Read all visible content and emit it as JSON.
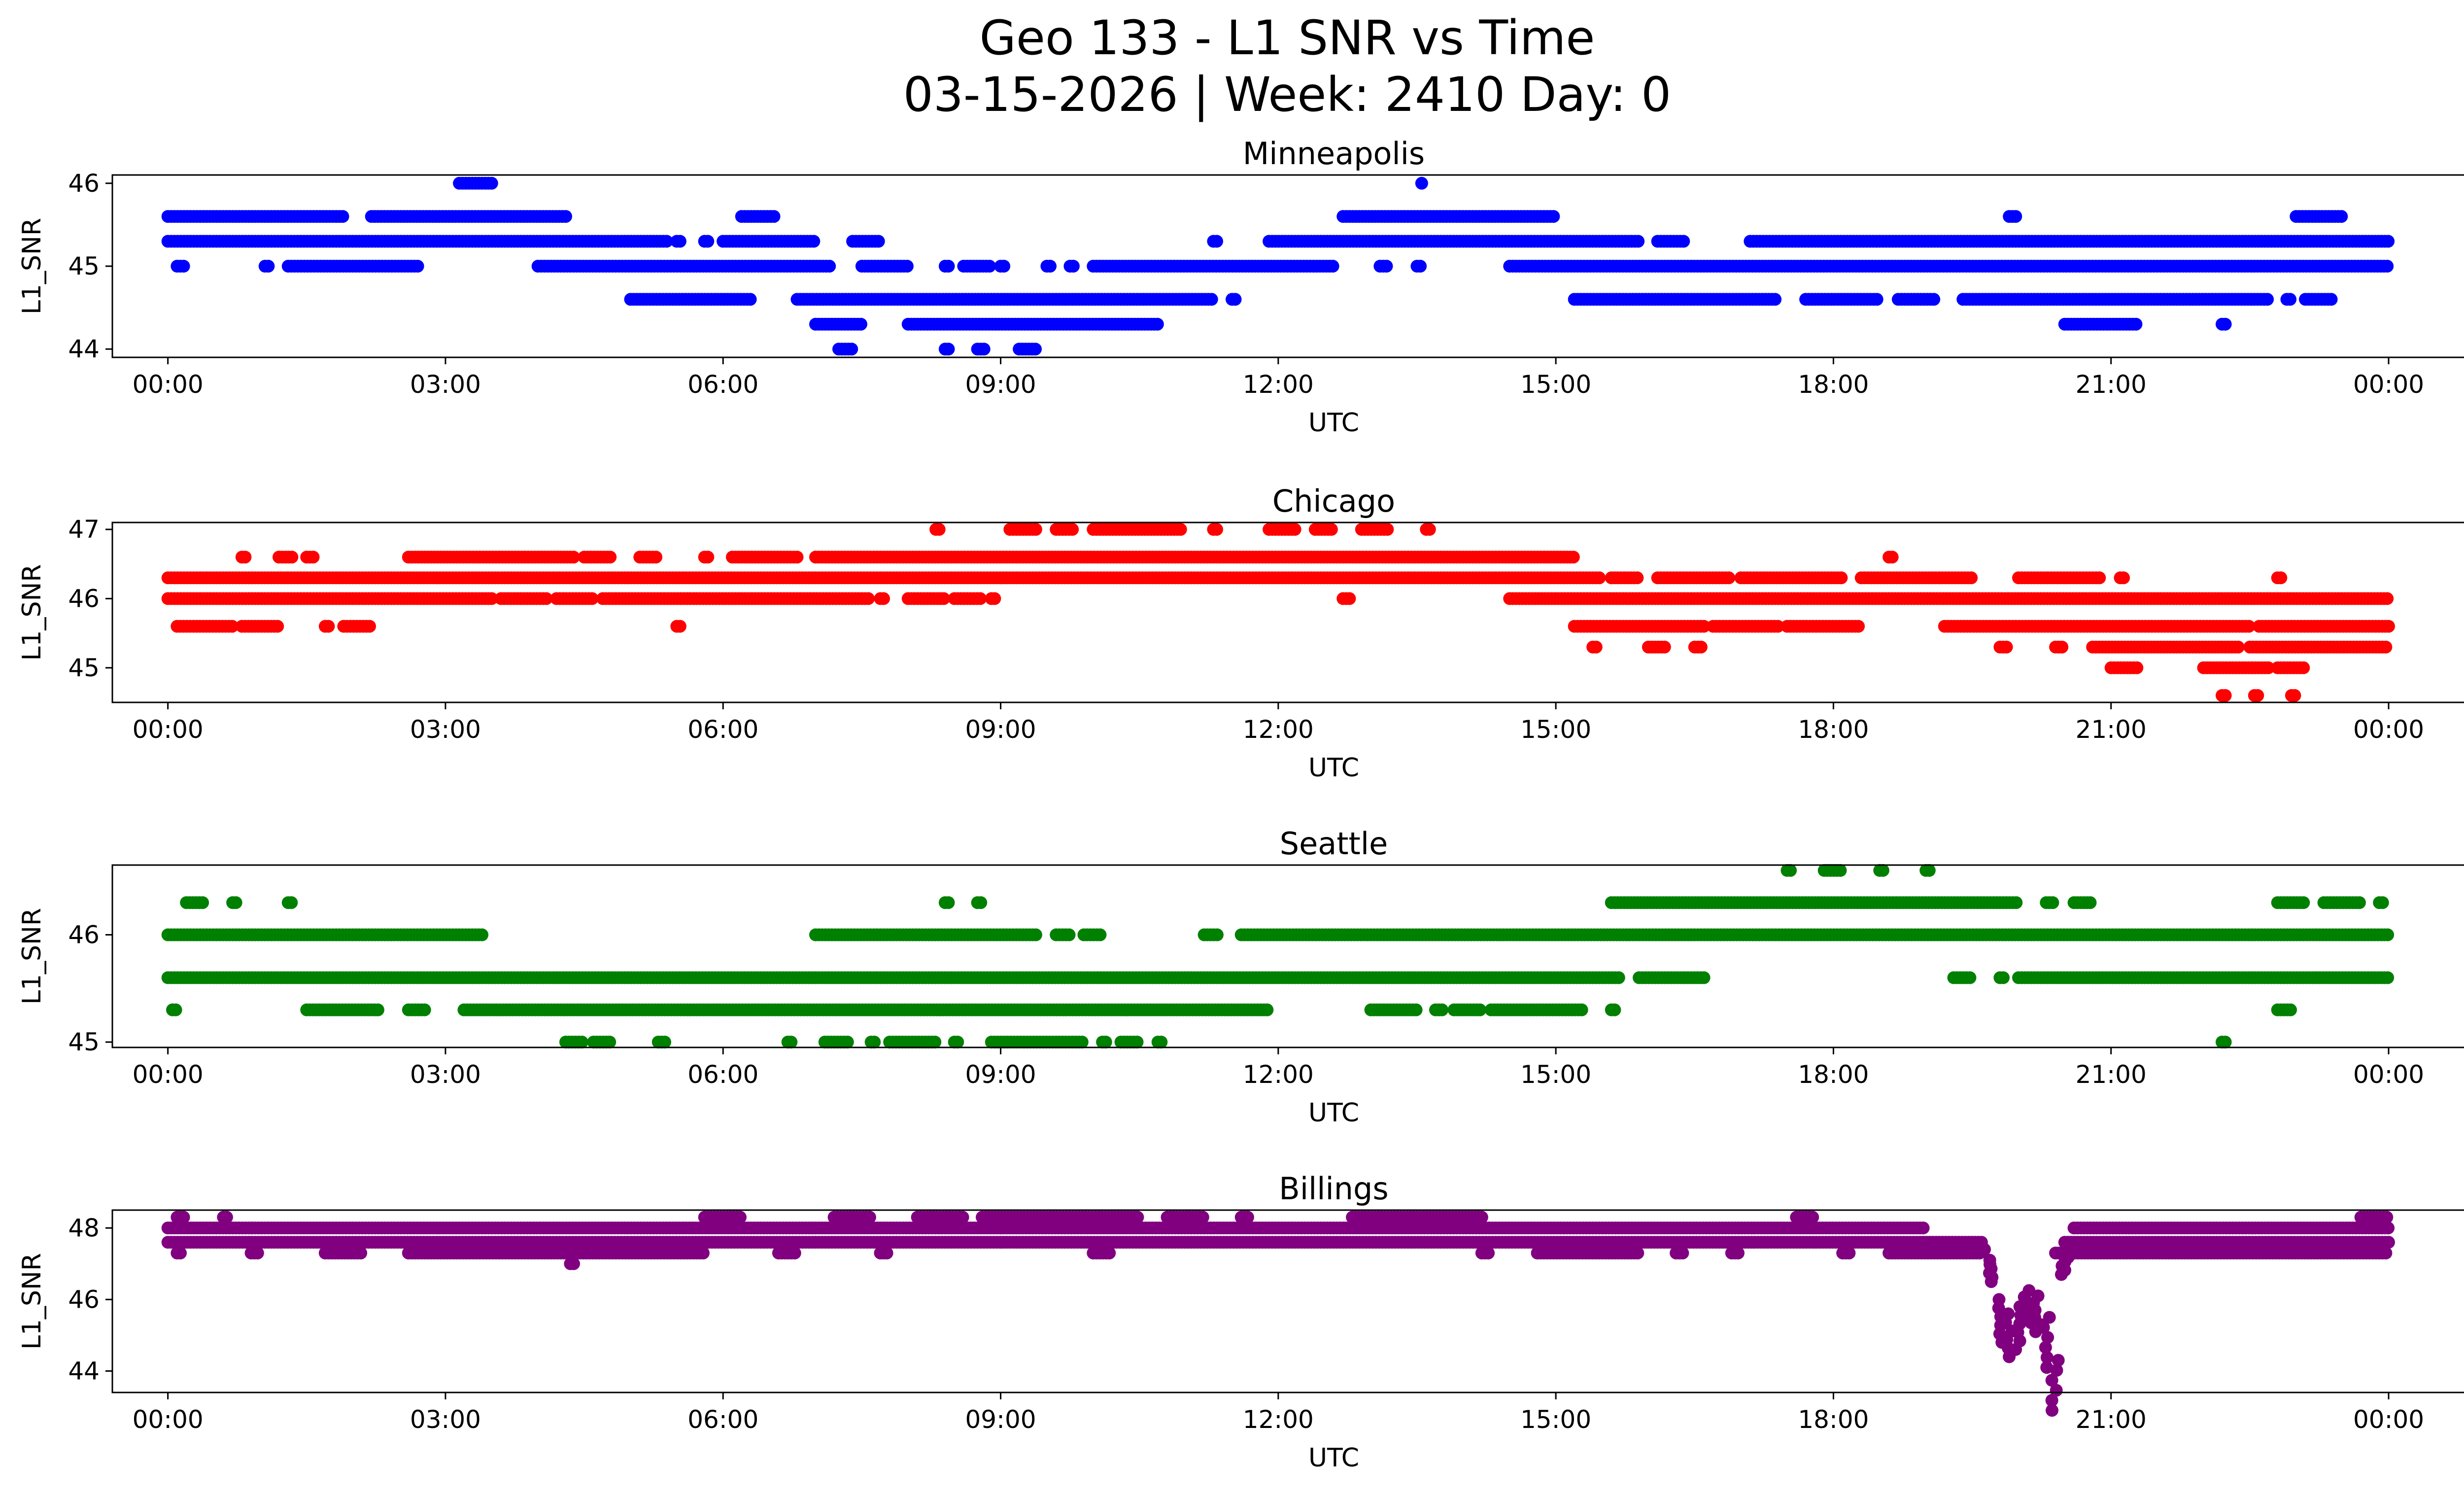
{
  "figure": {
    "title_line1": "Geo 133 - L1 SNR vs Time",
    "title_line2": "03-15-2026 | Week: 2410 Day: 0"
  },
  "chart_data": [
    {
      "type": "scatter",
      "title": "Minneapolis",
      "xlabel": "UTC",
      "ylabel": "L1_SNR",
      "color": "#0000ff",
      "xlim_hours": [
        -0.6,
        25.8
      ],
      "ylim": [
        43.9,
        46.1
      ],
      "xticks_hours": [
        0,
        3,
        6,
        9,
        12,
        15,
        18,
        21,
        24
      ],
      "xtick_labels": [
        "00:00",
        "03:00",
        "06:00",
        "09:00",
        "12:00",
        "15:00",
        "18:00",
        "21:00",
        "00:00"
      ],
      "yticks": [
        44,
        45,
        46
      ],
      "ytick_labels": [
        "44",
        "45",
        "46"
      ],
      "series": [
        {
          "level": 46.0,
          "ranges": [
            [
              3.15,
              3.5
            ],
            [
              13.55,
              13.55
            ]
          ]
        },
        {
          "level": 45.6,
          "ranges": [
            [
              0.0,
              1.9
            ],
            [
              2.2,
              4.3
            ],
            [
              6.2,
              6.55
            ],
            [
              12.7,
              15.0
            ],
            [
              19.9,
              20.0
            ],
            [
              23.0,
              23.5
            ]
          ]
        },
        {
          "level": 45.3,
          "ranges": [
            [
              0.0,
              5.4
            ],
            [
              5.5,
              5.55
            ],
            [
              5.8,
              5.85
            ],
            [
              6.0,
              7.0
            ],
            [
              7.4,
              7.7
            ],
            [
              11.3,
              11.35
            ],
            [
              11.9,
              15.9
            ],
            [
              16.1,
              16.4
            ],
            [
              17.1,
              24.0
            ]
          ]
        },
        {
          "level": 45.0,
          "ranges": [
            [
              0.1,
              0.2
            ],
            [
              1.05,
              1.1
            ],
            [
              1.3,
              2.7
            ],
            [
              4.0,
              7.15
            ],
            [
              7.5,
              8.0
            ],
            [
              8.4,
              8.45
            ],
            [
              8.6,
              8.9
            ],
            [
              9.0,
              9.05
            ],
            [
              9.5,
              9.55
            ],
            [
              9.75,
              9.8
            ],
            [
              10.0,
              12.6
            ],
            [
              13.1,
              13.2
            ],
            [
              13.5,
              13.55
            ],
            [
              14.5,
              24.0
            ]
          ]
        },
        {
          "level": 44.6,
          "ranges": [
            [
              5.0,
              6.3
            ],
            [
              6.8,
              11.3
            ],
            [
              11.5,
              11.55
            ],
            [
              15.2,
              17.4
            ],
            [
              17.7,
              18.5
            ],
            [
              18.7,
              19.1
            ],
            [
              19.4,
              22.7
            ],
            [
              22.9,
              22.95
            ],
            [
              23.1,
              23.4
            ]
          ]
        },
        {
          "level": 44.3,
          "ranges": [
            [
              7.0,
              7.5
            ],
            [
              8.0,
              10.7
            ],
            [
              20.5,
              21.3
            ],
            [
              22.2,
              22.25
            ]
          ]
        },
        {
          "level": 44.0,
          "ranges": [
            [
              7.25,
              7.4
            ],
            [
              8.4,
              8.45
            ],
            [
              8.75,
              8.85
            ],
            [
              9.2,
              9.4
            ]
          ]
        }
      ]
    },
    {
      "type": "scatter",
      "title": "Chicago",
      "xlabel": "UTC",
      "ylabel": "L1_SNR",
      "color": "#ff0000",
      "xlim_hours": [
        -0.6,
        25.8
      ],
      "ylim": [
        44.5,
        47.1
      ],
      "xticks_hours": [
        0,
        3,
        6,
        9,
        12,
        15,
        18,
        21,
        24
      ],
      "xtick_labels": [
        "00:00",
        "03:00",
        "06:00",
        "09:00",
        "12:00",
        "15:00",
        "18:00",
        "21:00",
        "00:00"
      ],
      "yticks": [
        45,
        46,
        47
      ],
      "ytick_labels": [
        "45",
        "46",
        "47"
      ],
      "series": [
        {
          "level": 47.0,
          "ranges": [
            [
              8.3,
              8.35
            ],
            [
              9.1,
              9.4
            ],
            [
              9.6,
              9.8
            ],
            [
              10.0,
              10.95
            ],
            [
              11.3,
              11.35
            ],
            [
              11.9,
              12.2
            ],
            [
              12.4,
              12.6
            ],
            [
              12.9,
              13.2
            ],
            [
              13.6,
              13.65
            ]
          ]
        },
        {
          "level": 46.6,
          "ranges": [
            [
              0.8,
              0.85
            ],
            [
              1.2,
              1.35
            ],
            [
              1.5,
              1.6
            ],
            [
              2.6,
              4.4
            ],
            [
              4.5,
              4.8
            ],
            [
              5.1,
              5.3
            ],
            [
              5.8,
              5.85
            ],
            [
              6.1,
              6.8
            ],
            [
              7.0,
              15.2
            ],
            [
              18.6,
              18.65
            ]
          ]
        },
        {
          "level": 46.3,
          "ranges": [
            [
              0.0,
              15.5
            ],
            [
              15.6,
              15.9
            ],
            [
              16.1,
              16.9
            ],
            [
              17.0,
              18.1
            ],
            [
              18.3,
              19.5
            ],
            [
              20.0,
              20.9
            ],
            [
              21.1,
              21.15
            ],
            [
              22.8,
              22.85
            ]
          ]
        },
        {
          "level": 46.0,
          "ranges": [
            [
              0.0,
              3.5
            ],
            [
              3.6,
              4.1
            ],
            [
              4.2,
              4.6
            ],
            [
              4.7,
              7.6
            ],
            [
              7.7,
              7.75
            ],
            [
              8.0,
              8.4
            ],
            [
              8.5,
              8.8
            ],
            [
              8.9,
              8.95
            ],
            [
              12.7,
              12.8
            ],
            [
              14.5,
              24.0
            ]
          ]
        },
        {
          "level": 45.6,
          "ranges": [
            [
              0.1,
              0.7
            ],
            [
              0.8,
              1.2
            ],
            [
              1.7,
              1.75
            ],
            [
              1.9,
              2.2
            ],
            [
              5.5,
              5.55
            ],
            [
              15.2,
              16.6
            ],
            [
              16.7,
              17.4
            ],
            [
              17.5,
              18.3
            ],
            [
              19.2,
              22.5
            ],
            [
              22.6,
              24.0
            ]
          ]
        },
        {
          "level": 45.3,
          "ranges": [
            [
              15.4,
              15.45
            ],
            [
              16.0,
              16.2
            ],
            [
              16.5,
              16.6
            ],
            [
              19.8,
              19.9
            ],
            [
              20.4,
              20.5
            ],
            [
              20.8,
              22.4
            ],
            [
              22.5,
              24.0
            ]
          ]
        },
        {
          "level": 45.0,
          "ranges": [
            [
              21.0,
              21.3
            ],
            [
              22.0,
              22.7
            ],
            [
              22.8,
              23.1
            ]
          ]
        },
        {
          "level": 44.6,
          "ranges": [
            [
              22.2,
              22.25
            ],
            [
              22.55,
              22.6
            ],
            [
              22.95,
              23.0
            ]
          ]
        }
      ]
    },
    {
      "type": "scatter",
      "title": "Seattle",
      "xlabel": "UTC",
      "ylabel": "L1_SNR",
      "color": "#008000",
      "xlim_hours": [
        -0.6,
        25.8
      ],
      "ylim": [
        44.95,
        46.65
      ],
      "xticks_hours": [
        0,
        3,
        6,
        9,
        12,
        15,
        18,
        21,
        24
      ],
      "xtick_labels": [
        "00:00",
        "03:00",
        "06:00",
        "09:00",
        "12:00",
        "15:00",
        "18:00",
        "21:00",
        "00:00"
      ],
      "yticks": [
        45,
        46
      ],
      "ytick_labels": [
        "45",
        "46"
      ],
      "series": [
        {
          "level": 46.6,
          "ranges": [
            [
              17.5,
              17.55
            ],
            [
              17.9,
              18.1
            ],
            [
              18.5,
              18.55
            ],
            [
              19.0,
              19.05
            ]
          ]
        },
        {
          "level": 46.3,
          "ranges": [
            [
              0.2,
              0.4
            ],
            [
              0.7,
              0.75
            ],
            [
              1.3,
              1.35
            ],
            [
              8.4,
              8.45
            ],
            [
              8.75,
              8.8
            ],
            [
              15.6,
              20.0
            ],
            [
              20.3,
              20.4
            ],
            [
              20.6,
              20.8
            ],
            [
              22.8,
              23.1
            ],
            [
              23.3,
              23.7
            ],
            [
              23.9,
              23.95
            ]
          ]
        },
        {
          "level": 46.0,
          "ranges": [
            [
              0.0,
              3.4
            ],
            [
              7.0,
              9.4
            ],
            [
              9.6,
              9.75
            ],
            [
              9.9,
              10.1
            ],
            [
              11.2,
              11.35
            ],
            [
              11.6,
              24.0
            ]
          ]
        },
        {
          "level": 45.6,
          "ranges": [
            [
              0.0,
              15.7
            ],
            [
              15.9,
              16.6
            ],
            [
              19.3,
              19.5
            ],
            [
              19.8,
              19.85
            ],
            [
              20.0,
              24.0
            ]
          ]
        },
        {
          "level": 45.3,
          "ranges": [
            [
              0.05,
              0.1
            ],
            [
              1.5,
              2.3
            ],
            [
              2.6,
              2.8
            ],
            [
              3.2,
              11.9
            ],
            [
              13.0,
              13.5
            ],
            [
              13.7,
              13.8
            ],
            [
              13.9,
              14.2
            ],
            [
              14.3,
              15.3
            ],
            [
              15.6,
              15.65
            ],
            [
              22.8,
              22.95
            ]
          ]
        },
        {
          "level": 45.0,
          "ranges": [
            [
              4.3,
              4.5
            ],
            [
              4.6,
              4.8
            ],
            [
              5.3,
              5.4
            ],
            [
              6.7,
              6.75
            ],
            [
              7.1,
              7.35
            ],
            [
              7.6,
              7.65
            ],
            [
              7.8,
              8.3
            ],
            [
              8.5,
              8.55
            ],
            [
              8.9,
              9.9
            ],
            [
              10.1,
              10.15
            ],
            [
              10.3,
              10.5
            ],
            [
              10.7,
              10.75
            ],
            [
              22.2,
              22.25
            ]
          ]
        }
      ]
    },
    {
      "type": "scatter",
      "title": "Billings",
      "xlabel": "UTC",
      "ylabel": "L1_SNR",
      "color": "#800080",
      "xlim_hours": [
        -0.6,
        25.8
      ],
      "ylim": [
        43.4,
        48.5
      ],
      "xticks_hours": [
        0,
        3,
        6,
        9,
        12,
        15,
        18,
        21,
        24
      ],
      "xtick_labels": [
        "00:00",
        "03:00",
        "06:00",
        "09:00",
        "12:00",
        "15:00",
        "18:00",
        "21:00",
        "00:00"
      ],
      "yticks": [
        44,
        46,
        48
      ],
      "ytick_labels": [
        "44",
        "46",
        "48"
      ],
      "series": [
        {
          "level": 48.3,
          "ranges": [
            [
              0.1,
              0.2
            ],
            [
              0.6,
              0.65
            ],
            [
              5.8,
              6.2
            ],
            [
              7.2,
              7.6
            ],
            [
              8.1,
              8.6
            ],
            [
              8.8,
              10.5
            ],
            [
              10.8,
              11.2
            ],
            [
              11.6,
              11.7
            ],
            [
              12.8,
              14.2
            ],
            [
              17.6,
              17.8
            ],
            [
              23.7,
              24.0
            ]
          ]
        },
        {
          "level": 48.0,
          "ranges": [
            [
              0.0,
              19.0
            ],
            [
              20.6,
              24.0
            ]
          ]
        },
        {
          "level": 47.6,
          "ranges": [
            [
              0.0,
              19.6
            ],
            [
              20.5,
              24.0
            ]
          ]
        },
        {
          "level": 47.3,
          "ranges": [
            [
              0.1,
              0.15
            ],
            [
              0.9,
              1.0
            ],
            [
              1.7,
              2.1
            ],
            [
              2.6,
              5.8
            ],
            [
              6.6,
              6.8
            ],
            [
              7.7,
              7.8
            ],
            [
              10.0,
              10.2
            ],
            [
              14.2,
              14.3
            ],
            [
              14.8,
              15.9
            ],
            [
              16.3,
              16.4
            ],
            [
              16.9,
              17.0
            ],
            [
              18.1,
              18.2
            ],
            [
              18.6,
              19.6
            ],
            [
              20.4,
              24.0
            ]
          ]
        },
        {
          "level": 47.0,
          "ranges": [
            [
              4.35,
              4.4
            ]
          ]
        },
        {
          "type": "dip",
          "x": [
            19.6,
            19.7,
            19.8,
            19.9,
            20.0,
            20.1,
            20.2,
            20.3,
            20.4,
            20.5
          ],
          "y": [
            47.4,
            46.8,
            45.4,
            45.0,
            45.2,
            45.8,
            45.6,
            44.8,
            43.6,
            47.0
          ],
          "spread": [
            0.0,
            0.6,
            1.2,
            1.2,
            1.2,
            0.9,
            1.0,
            1.4,
            1.4,
            0.6
          ]
        }
      ]
    }
  ]
}
